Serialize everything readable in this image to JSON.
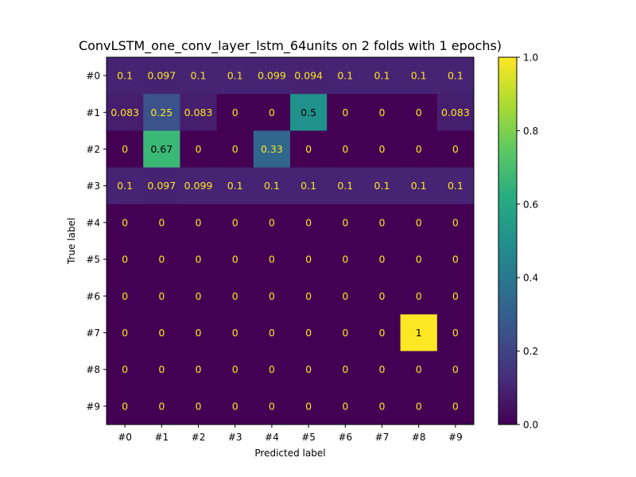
{
  "chart_data": {
    "type": "heatmap",
    "title": "ConvLSTM_one_conv_layer_lstm_64units on 2 folds with 1 epochs)",
    "xlabel": "Predicted label",
    "ylabel": "True label",
    "x_categories": [
      "#0",
      "#1",
      "#2",
      "#3",
      "#4",
      "#5",
      "#6",
      "#7",
      "#8",
      "#9"
    ],
    "y_categories": [
      "#0",
      "#1",
      "#2",
      "#3",
      "#4",
      "#5",
      "#6",
      "#7",
      "#8",
      "#9"
    ],
    "values": [
      [
        0.1,
        0.097,
        0.1,
        0.1,
        0.099,
        0.094,
        0.1,
        0.1,
        0.1,
        0.1
      ],
      [
        0.083,
        0.25,
        0.083,
        0,
        0,
        0.5,
        0,
        0,
        0,
        0.083
      ],
      [
        0,
        0.67,
        0,
        0,
        0.33,
        0,
        0,
        0,
        0,
        0
      ],
      [
        0.1,
        0.097,
        0.099,
        0.1,
        0.1,
        0.1,
        0.1,
        0.1,
        0.1,
        0.1
      ],
      [
        0,
        0,
        0,
        0,
        0,
        0,
        0,
        0,
        0,
        0
      ],
      [
        0,
        0,
        0,
        0,
        0,
        0,
        0,
        0,
        0,
        0
      ],
      [
        0,
        0,
        0,
        0,
        0,
        0,
        0,
        0,
        0,
        0
      ],
      [
        0,
        0,
        0,
        0,
        0,
        0,
        0,
        0,
        1,
        0
      ],
      [
        0,
        0,
        0,
        0,
        0,
        0,
        0,
        0,
        0,
        0
      ],
      [
        0,
        0,
        0,
        0,
        0,
        0,
        0,
        0,
        0,
        0
      ]
    ],
    "colorbar": {
      "colormap": "viridis",
      "range": [
        0.0,
        1.0
      ],
      "ticks": [
        "0.0",
        "0.2",
        "0.4",
        "0.6",
        "0.8",
        "1.0"
      ]
    },
    "text_colors": {
      "on_dark": "#fde725",
      "on_light": "#000000"
    }
  }
}
